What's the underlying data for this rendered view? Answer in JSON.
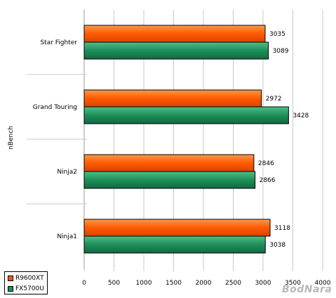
{
  "chart_data": {
    "type": "bar",
    "orientation": "horizontal",
    "title": "",
    "ylabel": "nBench",
    "xlabel": "",
    "xlim": [
      0,
      4000
    ],
    "xticks": [
      0,
      500,
      1000,
      1500,
      2000,
      2500,
      3000,
      3500,
      4000
    ],
    "grid": true,
    "legend_position": "bottom-left",
    "categories": [
      "Star Fighter",
      "Grand Touring",
      "Ninja2",
      "Ninja1"
    ],
    "series": [
      {
        "name": "R9600XT",
        "color": "#ff5a00",
        "values": [
          3035,
          2972,
          2846,
          3118
        ]
      },
      {
        "name": "FX5700U",
        "color": "#1f8f5a",
        "values": [
          3089,
          3428,
          2866,
          3038
        ]
      }
    ]
  },
  "watermark": "BodNara"
}
